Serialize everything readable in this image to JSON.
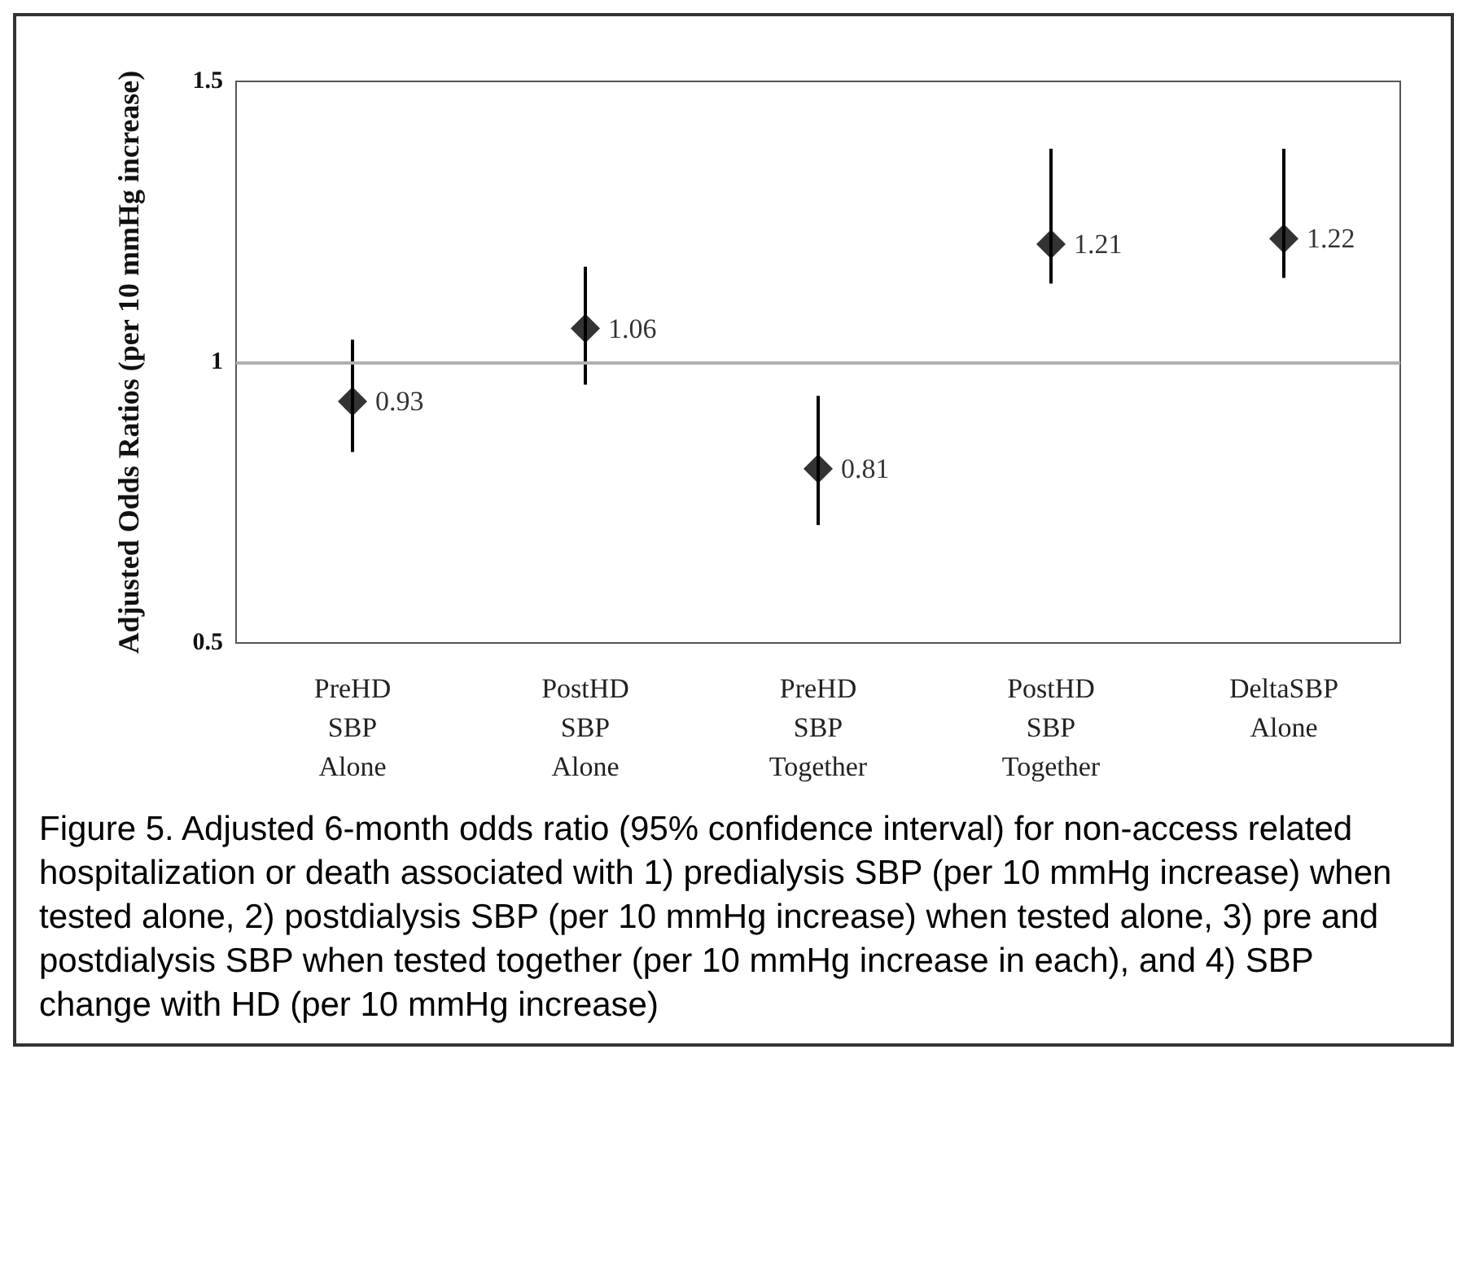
{
  "chart_data": {
    "type": "scatter",
    "ylabel": "Adjusted Odds Ratios (per 10 mmHg increase)",
    "categories": [
      "PreHD\nSBP\nAlone",
      "PostHD\nSBP\nAlone",
      "PreHD\nSBP\nTogether",
      "PostHD\nSBP\nTogether",
      "DeltaSBP\nAlone"
    ],
    "series": [
      {
        "color": "#000000",
        "values": [
          0.93,
          1.06,
          0.81,
          1.21,
          1.22
        ],
        "errors": [
          [
            0.84,
            1.04
          ],
          [
            0.96,
            1.17
          ],
          [
            0.71,
            0.94
          ],
          [
            1.14,
            1.38
          ],
          [
            1.15,
            1.38
          ]
        ]
      }
    ],
    "ylim": [
      0.5,
      1.5
    ],
    "yticks": [
      0.5,
      1,
      1.5
    ],
    "grid": false,
    "marker": "diamond",
    "data_labels": true,
    "ref_lines": [
      {
        "axis": "y",
        "value": 1,
        "color": "#b0b0b0"
      }
    ],
    "annotations": [
      "Figure 5. Adjusted 6-month odds ratio (95% confidence interval) for non-access related hospitalization or death associated with 1) predialysis SBP (per 10 mmHg increase) when tested alone, 2) postdialysis SBP (per 10 mmHg increase) when tested alone, 3) pre and postdialysis SBP when tested together (per 10 mmHg increase in each), and 4) SBP change with HD (per 10 mmHg increase)"
    ]
  }
}
